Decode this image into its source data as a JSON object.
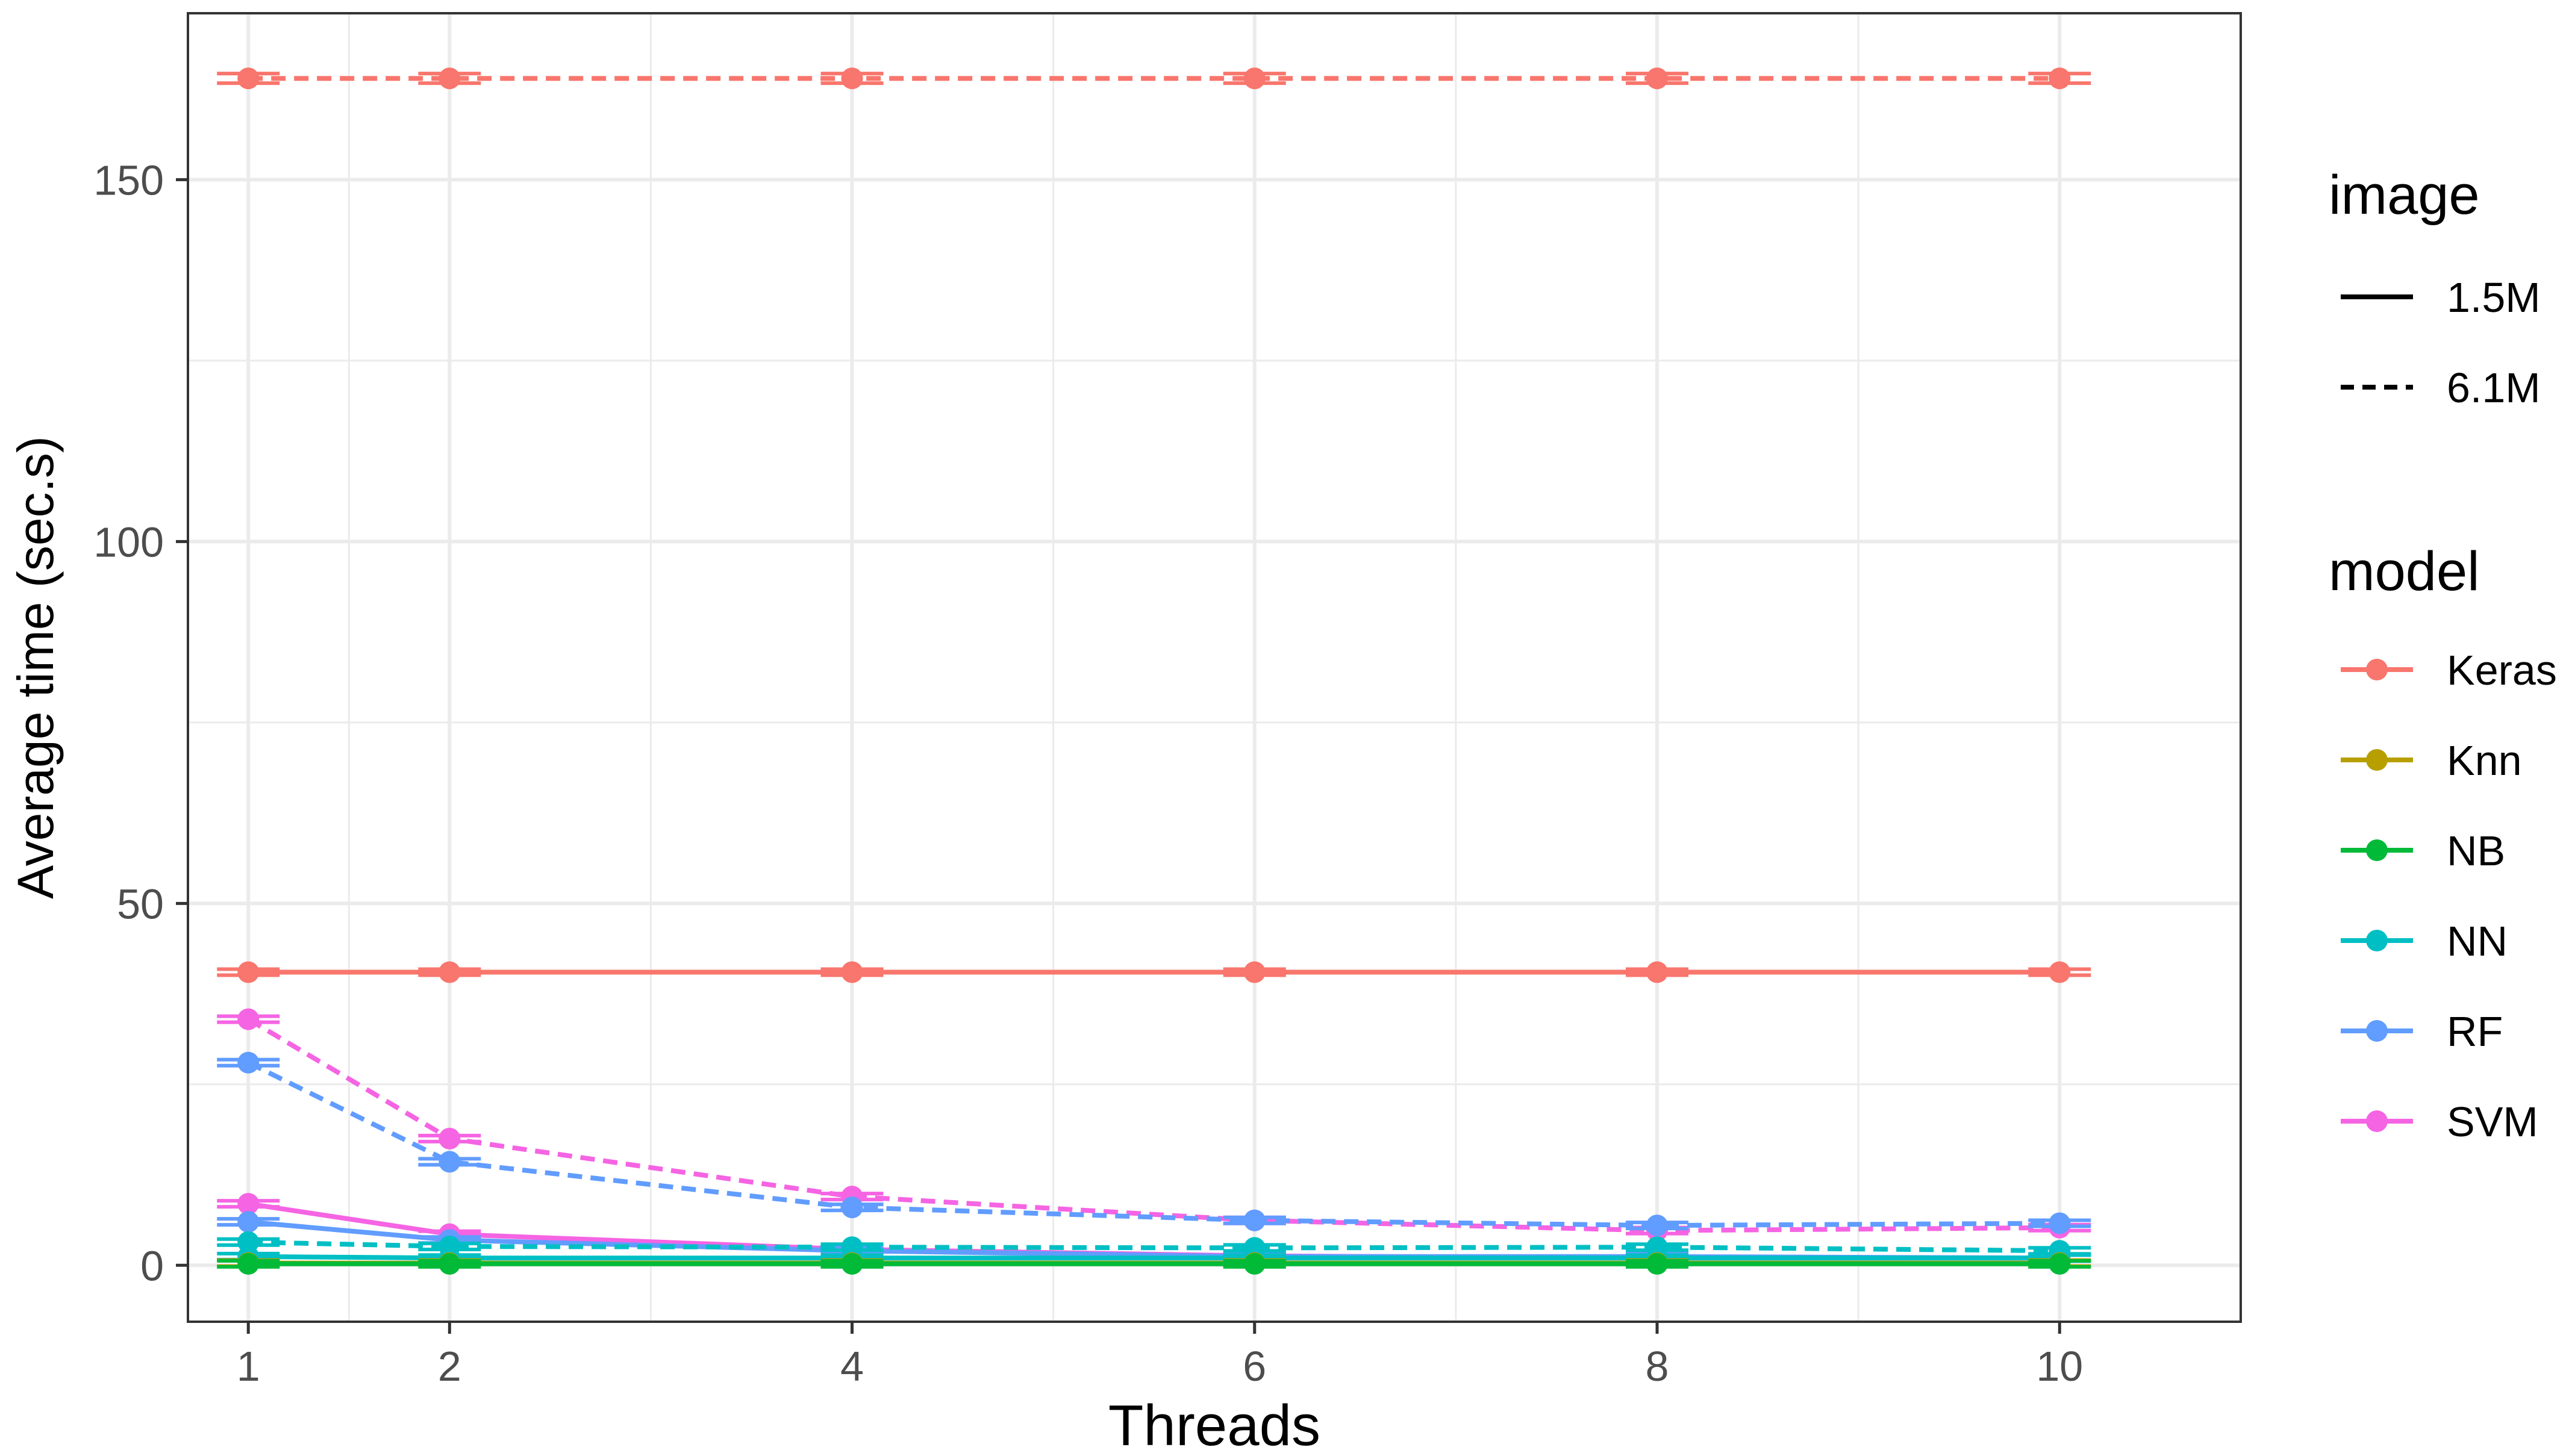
{
  "chart_data": {
    "type": "line",
    "title": "",
    "xlabel": "Threads",
    "ylabel": "Average time (sec.s)",
    "x": [
      1,
      2,
      4,
      6,
      8,
      10
    ],
    "xticks": [
      1,
      2,
      4,
      6,
      8,
      10
    ],
    "xtick_labels": [
      "1",
      "2",
      "4",
      "6",
      "8",
      "10"
    ],
    "xlim": [
      0.7,
      10.9
    ],
    "yticks": [
      0,
      50,
      100,
      150
    ],
    "ytick_labels": [
      "0",
      "50",
      "100",
      "150"
    ],
    "ylim": [
      -7.8,
      173
    ],
    "grid": true,
    "error_bars": true,
    "legend_position": "right",
    "legend_image": {
      "title": "image",
      "items": [
        {
          "label": "1.5M",
          "dash": "solid"
        },
        {
          "label": "6.1M",
          "dash": "dashed"
        }
      ]
    },
    "legend_model": {
      "title": "model",
      "items": [
        {
          "label": "Keras",
          "color": "#F8766D"
        },
        {
          "label": "Knn",
          "color": "#B79F00"
        },
        {
          "label": "NB",
          "color": "#00BA38"
        },
        {
          "label": "NN",
          "color": "#00BFC4"
        },
        {
          "label": "RF",
          "color": "#619CFF"
        },
        {
          "label": "SVM",
          "color": "#F564E3"
        }
      ]
    },
    "series": [
      {
        "model": "Keras",
        "image": "6.1M",
        "color": "#F8766D",
        "dash": "dashed",
        "values": [
          164,
          164,
          164,
          164,
          164,
          164
        ]
      },
      {
        "model": "Keras",
        "image": "1.5M",
        "color": "#F8766D",
        "dash": "solid",
        "values": [
          40.5,
          40.5,
          40.5,
          40.5,
          40.5,
          40.5
        ]
      },
      {
        "model": "SVM",
        "image": "6.1M",
        "color": "#F564E3",
        "dash": "dashed",
        "values": [
          34,
          17.5,
          9.5,
          6.2,
          4.8,
          5.2
        ]
      },
      {
        "model": "RF",
        "image": "6.1M",
        "color": "#619CFF",
        "dash": "dashed",
        "values": [
          28,
          14.3,
          8,
          6.2,
          5.5,
          5.8
        ]
      },
      {
        "model": "SVM",
        "image": "1.5M",
        "color": "#F564E3",
        "dash": "solid",
        "values": [
          8.5,
          4.3,
          2.2,
          1.3,
          1,
          1
        ]
      },
      {
        "model": "RF",
        "image": "1.5M",
        "color": "#619CFF",
        "dash": "solid",
        "values": [
          6,
          3.5,
          2,
          1.2,
          1.2,
          1
        ]
      },
      {
        "model": "NN",
        "image": "6.1M",
        "color": "#00BFC4",
        "dash": "dashed",
        "values": [
          3.2,
          2.6,
          2.5,
          2.4,
          2.5,
          2
        ]
      },
      {
        "model": "NN",
        "image": "1.5M",
        "color": "#00BFC4",
        "dash": "solid",
        "values": [
          1.2,
          1,
          1,
          1,
          1,
          1
        ]
      },
      {
        "model": "Knn",
        "image": "1.5M",
        "color": "#B79F00",
        "dash": "solid",
        "values": [
          0.3,
          0.3,
          0.3,
          0.3,
          0.3,
          0.3
        ]
      },
      {
        "model": "NB",
        "image": "1.5M",
        "color": "#00BA38",
        "dash": "solid",
        "values": [
          0.2,
          0.2,
          0.2,
          0.2,
          0.2,
          0.2
        ]
      }
    ]
  }
}
